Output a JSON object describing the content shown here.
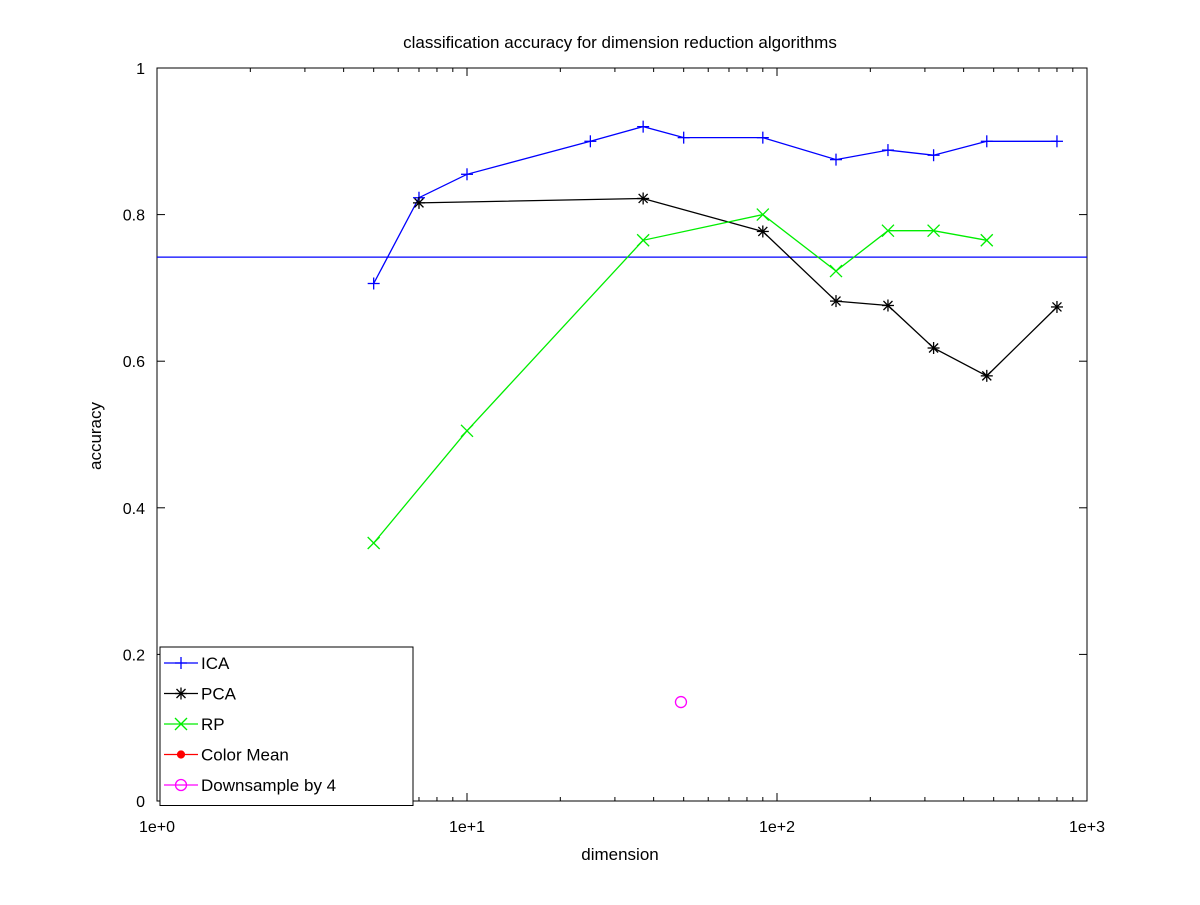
{
  "chart_data": {
    "type": "line",
    "title": "classification accuracy for dimension reduction algorithms",
    "xlabel": "dimension",
    "ylabel": "accuracy",
    "xscale": "log",
    "xlim": [
      1,
      1000
    ],
    "ylim": [
      0,
      1
    ],
    "xticks": [
      1,
      10,
      100,
      1000
    ],
    "xtick_labels": [
      "1e+0",
      "1e+1",
      "1e+2",
      "1e+3"
    ],
    "yticks": [
      0,
      0.2,
      0.4,
      0.6,
      0.8,
      1
    ],
    "ytick_labels": [
      "0",
      "0.2",
      "0.4",
      "0.6",
      "0.8",
      "1"
    ],
    "grid": false,
    "legend_position": "bottom-left",
    "reference_line": {
      "y": 0.742,
      "color": "#0000ff"
    },
    "series": [
      {
        "name": "ICA",
        "color": "#0000ff",
        "marker": "plus",
        "x": [
          5,
          7,
          10,
          25,
          37,
          50,
          90,
          155,
          228,
          320,
          475,
          800
        ],
        "y": [
          0.706,
          0.823,
          0.855,
          0.9,
          0.92,
          0.905,
          0.905,
          0.875,
          0.888,
          0.881,
          0.9,
          0.9
        ]
      },
      {
        "name": "PCA",
        "color": "#000000",
        "marker": "asterisk",
        "x": [
          7,
          37,
          90,
          155,
          228,
          320,
          475,
          800
        ],
        "y": [
          0.816,
          0.822,
          0.777,
          0.682,
          0.676,
          0.618,
          0.58,
          0.674
        ]
      },
      {
        "name": "RP",
        "color": "#00ee00",
        "marker": "x",
        "x": [
          5,
          10,
          37,
          90,
          155,
          228,
          320,
          475
        ],
        "y": [
          0.352,
          0.505,
          0.765,
          0.8,
          0.723,
          0.778,
          0.778,
          0.765
        ]
      },
      {
        "name": "Color Mean",
        "color": "#ff0000",
        "marker": "dot",
        "x": [
          2
        ],
        "y": [
          0.135
        ]
      },
      {
        "name": "Downsample by 4",
        "color": "#ff00ff",
        "marker": "circle",
        "x": [
          49
        ],
        "y": [
          0.135
        ]
      }
    ]
  }
}
